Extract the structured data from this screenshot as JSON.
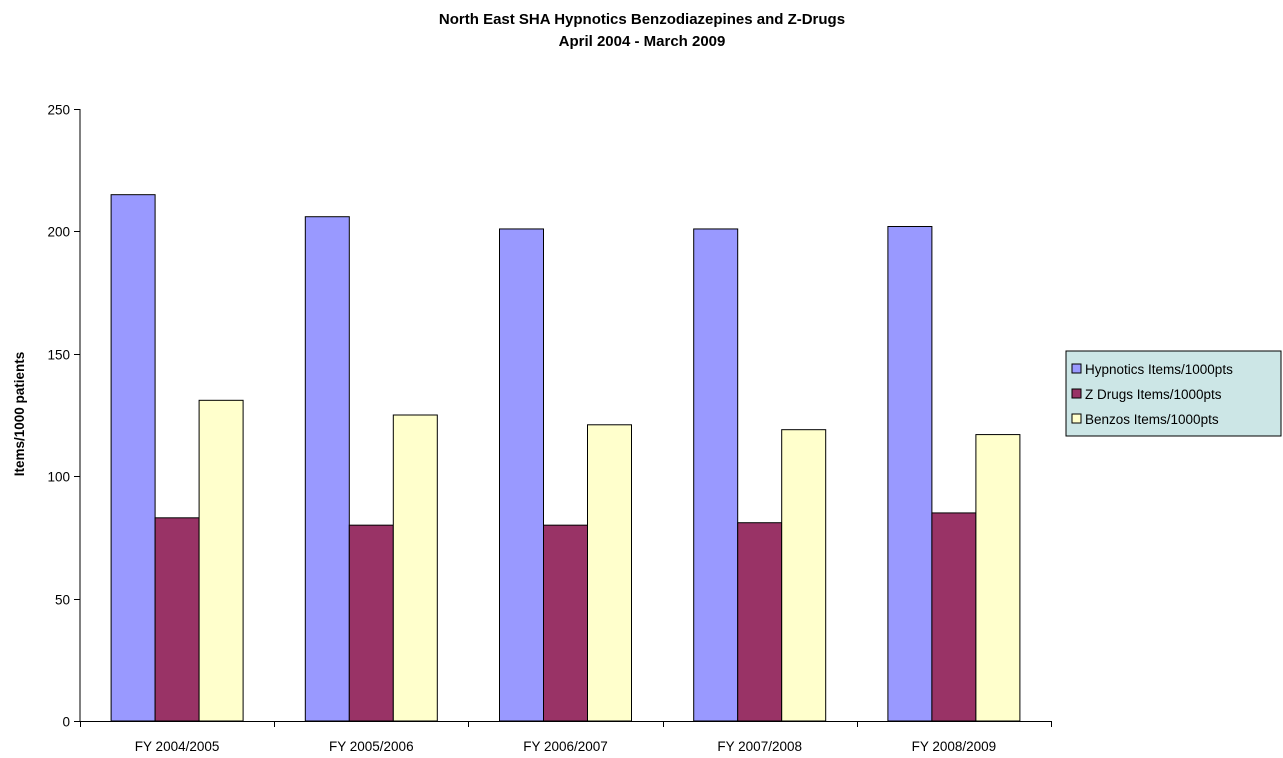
{
  "chart_data": {
    "type": "bar",
    "title": "North East SHA Hypnotics Benzodiazepines  and Z-Drugs",
    "subtitle": "April 2004 - March 2009",
    "xlabel": "",
    "ylabel": "Items/1000 patients",
    "ylim": [
      0,
      250
    ],
    "yticks": [
      0,
      50,
      100,
      150,
      200,
      250
    ],
    "ytick_labels": [
      "0",
      "50",
      "100",
      "150",
      "200",
      "250"
    ],
    "grid": false,
    "legend_position": "right",
    "categories": [
      "FY 2004/2005",
      "FY 2005/2006",
      "FY 2006/2007",
      "FY 2007/2008",
      "FY 2008/2009"
    ],
    "series": [
      {
        "name": "Hypnotics Items/1000pts",
        "color": "#9999ff",
        "values": [
          215,
          206,
          201,
          201,
          202
        ]
      },
      {
        "name": "Z Drugs Items/1000pts",
        "color": "#993366",
        "values": [
          83,
          80,
          80,
          81,
          85
        ]
      },
      {
        "name": "Benzos Items/1000pts",
        "color": "#ffffcc",
        "values": [
          131,
          125,
          121,
          119,
          117
        ]
      }
    ],
    "legend_background": "#cce6e6"
  }
}
